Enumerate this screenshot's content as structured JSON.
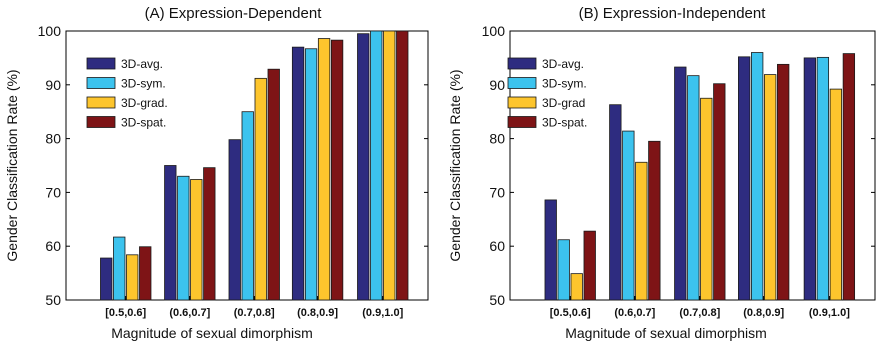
{
  "colors": {
    "3D-avg": "#2e2c80",
    "3D-sym": "#3cc3ee",
    "3D-grad": "#fdc52d",
    "3D-spat": "#7e1416"
  },
  "chart_data": [
    {
      "type": "bar",
      "title": "(A) Expression-Dependent",
      "xlabel": "Magnitude of sexual dimorphism",
      "ylabel": "Gender Classification Rate (%)",
      "ylim": [
        50,
        100
      ],
      "yticks": [
        "50",
        "60",
        "70",
        "80",
        "90",
        "100"
      ],
      "categories": [
        "[0.5,0.6]",
        "(0.6,0.7]",
        "(0.7,0.8]",
        "(0.8,0.9]",
        "(0.9,1.0]"
      ],
      "legend_position": "upper-left",
      "series": [
        {
          "name": "3D-avg.",
          "key": "3D-avg",
          "values": [
            57.8,
            75.0,
            79.8,
            97.0,
            99.5
          ]
        },
        {
          "name": "3D-sym.",
          "key": "3D-sym",
          "values": [
            61.7,
            73.0,
            85.0,
            96.7,
            100.0
          ]
        },
        {
          "name": "3D-grad.",
          "key": "3D-grad",
          "values": [
            58.4,
            72.4,
            91.2,
            98.6,
            100.0
          ]
        },
        {
          "name": "3D-spat.",
          "key": "3D-spat",
          "values": [
            59.9,
            74.6,
            92.9,
            98.3,
            100.0
          ]
        }
      ]
    },
    {
      "type": "bar",
      "title": "(B) Expression-Independent",
      "xlabel": "Magnitude of sexual dimorphism",
      "ylabel": "Gender Classification Rate (%)",
      "ylim": [
        50,
        100
      ],
      "yticks": [
        "50",
        "60",
        "70",
        "80",
        "90",
        "100"
      ],
      "categories": [
        "[0.5,0.6]",
        "(0.6,0.7]",
        "(0.7,0.8]",
        "(0.8,0.9]",
        "(0.9,1.0]"
      ],
      "legend_position": "upper-left",
      "series": [
        {
          "name": "3D-avg.",
          "key": "3D-avg",
          "values": [
            68.6,
            86.3,
            93.3,
            95.2,
            95.0
          ]
        },
        {
          "name": "3D-sym.",
          "key": "3D-sym",
          "values": [
            61.2,
            81.4,
            91.7,
            96.0,
            95.1
          ]
        },
        {
          "name": "3D-grad",
          "key": "3D-grad",
          "values": [
            54.9,
            75.6,
            87.5,
            91.9,
            89.2
          ]
        },
        {
          "name": "3D-spat.",
          "key": "3D-spat",
          "values": [
            62.8,
            79.5,
            90.2,
            93.8,
            95.8
          ]
        }
      ]
    }
  ]
}
